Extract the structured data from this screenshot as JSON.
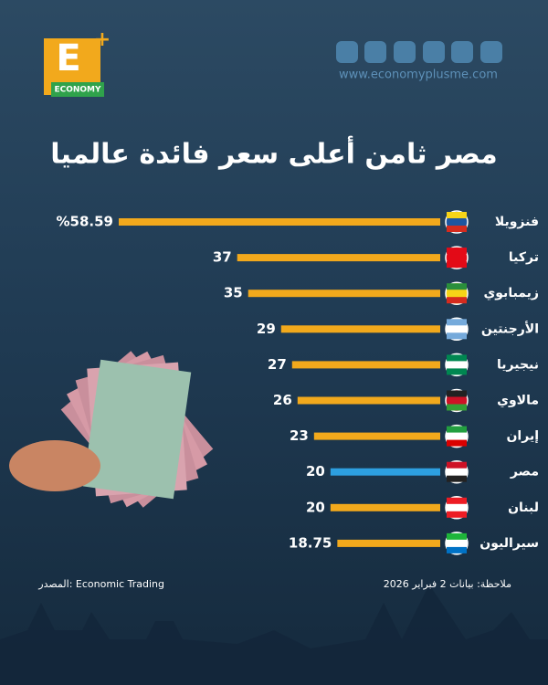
{
  "header": {
    "logo_letter": "E",
    "brand": "ECONOMY",
    "website": "www.economyplusme.com"
  },
  "chart_data": {
    "type": "bar",
    "orientation": "horizontal",
    "title": "مصر ثامن أعلى سعر فائدة عالميا",
    "categories": [
      "فنزويلا",
      "تركيا",
      "زيمبابوي",
      "الأرجنتين",
      "نيجيريا",
      "مالاوي",
      "إيران",
      "مصر",
      "لبنان",
      "سيراليون"
    ],
    "values": [
      58.59,
      37,
      35,
      29,
      27,
      26,
      23,
      20,
      20,
      18.75
    ],
    "value_labels": [
      "%58.59",
      "37",
      "35",
      "29",
      "27",
      "26",
      "23",
      "20",
      "20",
      "18.75"
    ],
    "colors": [
      "#f2a91c",
      "#f2a91c",
      "#f2a91c",
      "#f2a91c",
      "#f2a91c",
      "#f2a91c",
      "#f2a91c",
      "#2d9fe0",
      "#f2a91c",
      "#f2a91c"
    ]
  },
  "footer": {
    "source": "المصدر: Economic Trading",
    "note": "ملاحظة: بيانات 2 فبراير 2026"
  }
}
